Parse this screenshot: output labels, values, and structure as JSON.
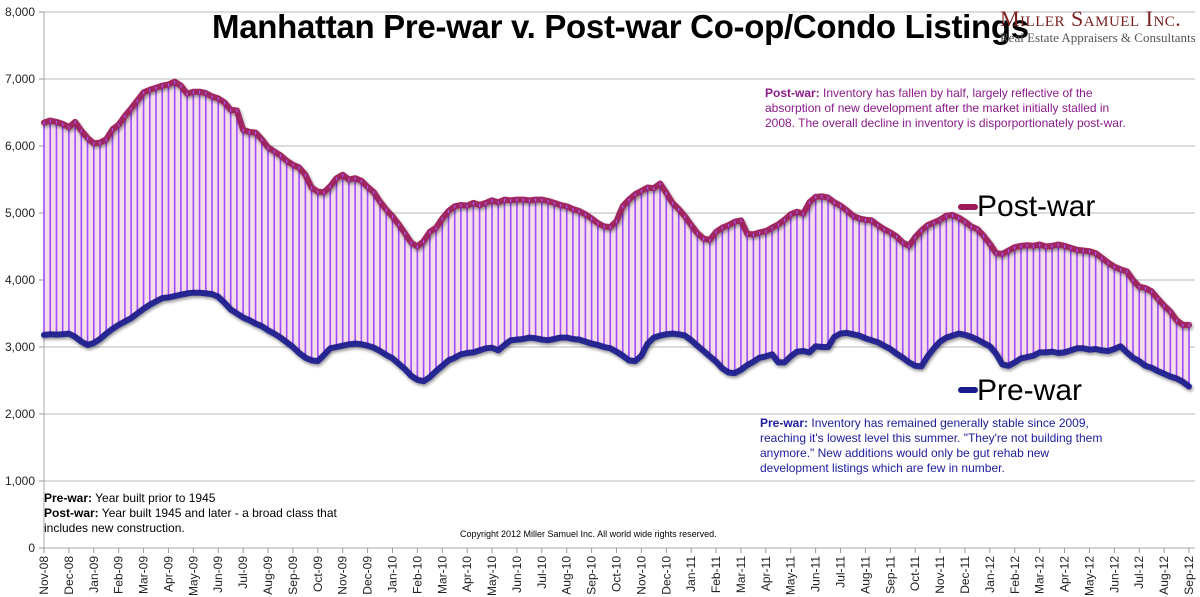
{
  "chart_data": {
    "type": "area",
    "title": "Manhattan Pre-war v. Post-war Co-op/Condo Listings",
    "xlabel": "",
    "ylabel": "",
    "ylim": [
      0,
      8000
    ],
    "yticks": [
      "0",
      "1,000",
      "2,000",
      "3,000",
      "4,000",
      "5,000",
      "6,000",
      "7,000",
      "8,000"
    ],
    "ytick_values": [
      0,
      1000,
      2000,
      3000,
      4000,
      5000,
      6000,
      7000,
      8000
    ],
    "grid": true,
    "categories": [
      "Nov-08",
      "Dec-08",
      "Jan-09",
      "Feb-09",
      "Mar-09",
      "Apr-09",
      "May-09",
      "Jun-09",
      "Jul-09",
      "Aug-09",
      "Sep-09",
      "Oct-09",
      "Nov-09",
      "Dec-09",
      "Jan-10",
      "Feb-10",
      "Mar-10",
      "Apr-10",
      "May-10",
      "Jun-10",
      "Jul-10",
      "Aug-10",
      "Sep-10",
      "Oct-10",
      "Nov-10",
      "Dec-10",
      "Jan-11",
      "Feb-11",
      "Mar-11",
      "Apr-11",
      "May-11",
      "Jun-11",
      "Jul-11",
      "Aug-11",
      "Sep-11",
      "Oct-11",
      "Nov-11",
      "Dec-11",
      "Jan-12",
      "Feb-12",
      "Mar-12",
      "Apr-12",
      "May-12",
      "Jun-12",
      "Jul-12",
      "Aug-12",
      "Sep-12"
    ],
    "x_month_index": [
      0,
      0.25,
      0.5,
      0.75,
      1,
      1.25,
      1.5,
      1.75,
      2,
      2.25,
      2.5,
      2.75,
      3,
      3.25,
      3.5,
      3.75,
      4,
      4.25,
      4.5,
      4.75,
      5,
      5.25,
      5.5,
      5.75,
      6,
      6.25,
      6.5,
      6.75,
      7,
      7.25,
      7.5,
      7.75,
      8,
      8.25,
      8.5,
      8.75,
      9,
      9.25,
      9.5,
      9.75,
      10,
      10.25,
      10.5,
      10.75,
      11,
      11.25,
      11.5,
      11.75,
      12,
      12.25,
      12.5,
      12.75,
      13,
      13.25,
      13.5,
      13.75,
      14,
      14.25,
      14.5,
      14.75,
      15,
      15.25,
      15.5,
      15.75,
      16,
      16.25,
      16.5,
      16.75,
      17,
      17.25,
      17.5,
      17.75,
      18,
      18.25,
      18.5,
      18.75,
      19,
      19.25,
      19.5,
      19.75,
      20,
      20.25,
      20.5,
      20.75,
      21,
      21.25,
      21.5,
      21.75,
      22,
      22.25,
      22.5,
      22.75,
      23,
      23.25,
      23.5,
      23.75,
      24,
      24.25,
      24.5,
      24.75,
      25,
      25.25,
      25.5,
      25.75,
      26,
      26.25,
      26.5,
      26.75,
      27,
      27.25,
      27.5,
      27.75,
      28,
      28.25,
      28.5,
      28.75,
      29,
      29.25,
      29.5,
      29.75,
      30,
      30.25,
      30.5,
      30.75,
      31,
      31.25,
      31.5,
      31.75,
      32,
      32.25,
      32.5,
      32.75,
      33,
      33.25,
      33.5,
      33.75,
      34,
      34.25,
      34.5,
      34.75,
      35,
      35.25,
      35.5,
      35.75,
      36,
      36.25,
      36.5,
      36.75,
      37,
      37.25,
      37.5,
      37.75,
      38,
      38.25,
      38.5,
      38.75,
      39,
      39.25,
      39.5,
      39.75,
      40,
      40.25,
      40.5,
      40.75,
      41,
      41.25,
      41.5,
      41.75,
      42,
      42.25,
      42.5,
      42.75,
      43,
      43.25,
      43.5,
      43.75,
      44,
      44.25,
      44.5,
      44.75,
      45,
      45.25,
      45.5,
      45.75,
      46
    ],
    "series": [
      {
        "name": "Post-war",
        "color": "#9b1b5a",
        "values": [
          6350,
          6380,
          6360,
          6330,
          6280,
          6360,
          6230,
          6120,
          6040,
          6050,
          6100,
          6250,
          6320,
          6450,
          6560,
          6680,
          6800,
          6840,
          6870,
          6900,
          6920,
          6960,
          6900,
          6780,
          6810,
          6810,
          6790,
          6740,
          6710,
          6650,
          6540,
          6530,
          6240,
          6210,
          6200,
          6100,
          5980,
          5920,
          5860,
          5780,
          5720,
          5680,
          5570,
          5380,
          5320,
          5310,
          5400,
          5520,
          5570,
          5500,
          5520,
          5480,
          5390,
          5310,
          5170,
          5050,
          4950,
          4830,
          4700,
          4560,
          4500,
          4580,
          4720,
          4780,
          4920,
          5030,
          5100,
          5120,
          5110,
          5150,
          5120,
          5150,
          5190,
          5160,
          5200,
          5190,
          5200,
          5200,
          5190,
          5200,
          5200,
          5180,
          5150,
          5120,
          5100,
          5060,
          5030,
          4980,
          4920,
          4850,
          4800,
          4790,
          4880,
          5100,
          5200,
          5280,
          5330,
          5380,
          5370,
          5440,
          5300,
          5150,
          5060,
          4950,
          4820,
          4700,
          4620,
          4600,
          4720,
          4780,
          4820,
          4870,
          4890,
          4690,
          4680,
          4710,
          4730,
          4780,
          4830,
          4900,
          4980,
          5020,
          4990,
          5160,
          5240,
          5250,
          5230,
          5160,
          5110,
          5040,
          4960,
          4920,
          4900,
          4890,
          4820,
          4760,
          4710,
          4650,
          4560,
          4510,
          4640,
          4740,
          4820,
          4860,
          4900,
          4960,
          4970,
          4930,
          4870,
          4800,
          4760,
          4660,
          4540,
          4400,
          4390,
          4440,
          4490,
          4510,
          4520,
          4510,
          4530,
          4500,
          4510,
          4530,
          4510,
          4480,
          4450,
          4440,
          4430,
          4400,
          4330,
          4260,
          4200,
          4160,
          4130,
          4000,
          3900,
          3880,
          3830,
          3720,
          3620,
          3530,
          3400,
          3330,
          3330,
          3350
        ]
      },
      {
        "name": "Pre-war",
        "color": "#1a1a8c",
        "values": [
          3180,
          3190,
          3185,
          3190,
          3200,
          3150,
          3080,
          3030,
          3060,
          3120,
          3200,
          3270,
          3330,
          3380,
          3430,
          3500,
          3570,
          3630,
          3680,
          3730,
          3740,
          3760,
          3780,
          3800,
          3810,
          3810,
          3800,
          3790,
          3750,
          3660,
          3560,
          3500,
          3440,
          3400,
          3350,
          3310,
          3250,
          3200,
          3140,
          3070,
          3000,
          2910,
          2840,
          2800,
          2790,
          2880,
          2980,
          3000,
          3020,
          3040,
          3050,
          3040,
          3020,
          2990,
          2940,
          2880,
          2830,
          2750,
          2670,
          2570,
          2510,
          2490,
          2550,
          2640,
          2720,
          2800,
          2840,
          2890,
          2910,
          2920,
          2950,
          2980,
          2990,
          2950,
          3030,
          3100,
          3110,
          3120,
          3140,
          3130,
          3110,
          3100,
          3120,
          3140,
          3140,
          3120,
          3110,
          3080,
          3050,
          3030,
          3000,
          2980,
          2930,
          2870,
          2800,
          2790,
          2870,
          3050,
          3140,
          3170,
          3190,
          3200,
          3190,
          3170,
          3100,
          3020,
          2940,
          2860,
          2780,
          2680,
          2620,
          2610,
          2660,
          2730,
          2780,
          2840,
          2860,
          2890,
          2770,
          2770,
          2860,
          2930,
          2940,
          2920,
          3010,
          3000,
          3000,
          3150,
          3200,
          3210,
          3190,
          3170,
          3130,
          3100,
          3070,
          3020,
          2970,
          2900,
          2840,
          2770,
          2720,
          2710,
          2860,
          2980,
          3080,
          3140,
          3170,
          3200,
          3180,
          3150,
          3110,
          3060,
          3010,
          2900,
          2740,
          2720,
          2770,
          2830,
          2850,
          2870,
          2920,
          2920,
          2930,
          2910,
          2920,
          2950,
          2980,
          2980,
          2960,
          2970,
          2950,
          2940,
          2970,
          3010,
          2920,
          2840,
          2790,
          2720,
          2690,
          2640,
          2600,
          2560,
          2530,
          2480,
          2410,
          2410,
          2470,
          2640
        ]
      }
    ],
    "legend": [
      {
        "label": "Post-war",
        "color": "#9b1b5a",
        "placement": "right"
      },
      {
        "label": "Pre-war",
        "color": "#1a1a8c",
        "placement": "right"
      }
    ]
  },
  "logo": {
    "name": "Miller Samuel Inc.",
    "tagline": "Real Estate Appraisers & Consultants"
  },
  "annotations": {
    "post_war_label": "Post-war:",
    "post_war_text": " Inventory has fallen by half, largely reflective of the absorption of new development after the market initially stalled in 2008.  The overall decline in inventory is disporportionately post-war.",
    "pre_war_label": "Pre-war:",
    "pre_war_text": " Inventory has remained generally stable since 2009, reaching it's lowest level this summer.  \"They're not building them anymore.\"  New additions would only be gut rehab new development listings which are few in number.",
    "def_pre_label": "Pre-war:",
    "def_pre_text": " Year built prior to 1945",
    "def_post_label": "Post-war:",
    "def_post_text": " Year built 1945 and later - a broad class that includes new construction.",
    "copyright": "Copyright 2012 Miller Samuel Inc.  All world wide rights reserved."
  }
}
